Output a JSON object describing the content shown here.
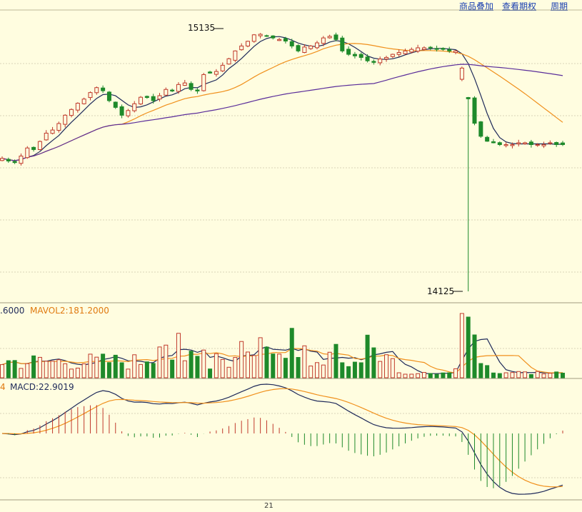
{
  "header": {
    "links": [
      "商品叠加",
      "查看期权",
      "周期"
    ]
  },
  "price_panel": {
    "high_label": "15135",
    "low_label": "14125"
  },
  "volume_panel": {
    "label_left": ".6000",
    "label_mavol": "MAVOL2:181.2000"
  },
  "macd_panel": {
    "label_left": "4",
    "label_macd": "MACD:22.9019"
  },
  "x_axis": {
    "label": "21"
  },
  "colors": {
    "background": "#fffde0",
    "up": "#c0392b",
    "down": "#1e8a2a",
    "ma_short": "#1f2a5a",
    "ma_mid": "#f0901c",
    "ma_long": "#5a2d9a",
    "link": "#1a3fb0"
  },
  "chart_data": [
    {
      "type": "candlestick",
      "title": "",
      "ylim": [
        14125,
        15135
      ],
      "annotations": [
        {
          "text": "15135",
          "y": 15135
        },
        {
          "text": "14125",
          "y": 14125
        }
      ],
      "grid": true,
      "series": [
        {
          "name": "",
          "values": [
            14636,
            14626,
            14620,
            14645,
            14676,
            14670,
            14701,
            14733,
            14745,
            14770,
            14802,
            14824,
            14848,
            14864,
            14889,
            14908,
            14896,
            14858,
            14832,
            14802,
            14820,
            14846,
            14871,
            14870,
            14858,
            14877,
            14901,
            14895,
            14920,
            14926,
            14901,
            14895,
            14958,
            14964,
            14970,
            14994,
            15019,
            15049,
            15068,
            15086,
            15111,
            15113,
            15105,
            15099,
            15093,
            15087,
            15068,
            15049,
            15064,
            15068,
            15080,
            15099,
            15105,
            15093,
            15049,
            15036,
            15030,
            15024,
            15011,
            15005,
            15018,
            15024,
            15036,
            15043,
            15049,
            15055,
            15061,
            15061,
            15061,
            15055,
            15055,
            15049,
            15049,
            14983,
            14865,
            14771,
            14721,
            14702,
            14696,
            14689,
            14689,
            14689,
            14696,
            14696,
            14689,
            14689,
            14689,
            14696,
            14689,
            14689
          ]
        }
      ]
    },
    {
      "type": "bar",
      "title": "",
      "series": [
        {
          "name": "MAVOL2",
          "values": [
            181.2
          ]
        }
      ]
    },
    {
      "type": "bar",
      "title": "",
      "series": [
        {
          "name": "MACD",
          "values": [
            22.9019
          ]
        }
      ]
    }
  ]
}
